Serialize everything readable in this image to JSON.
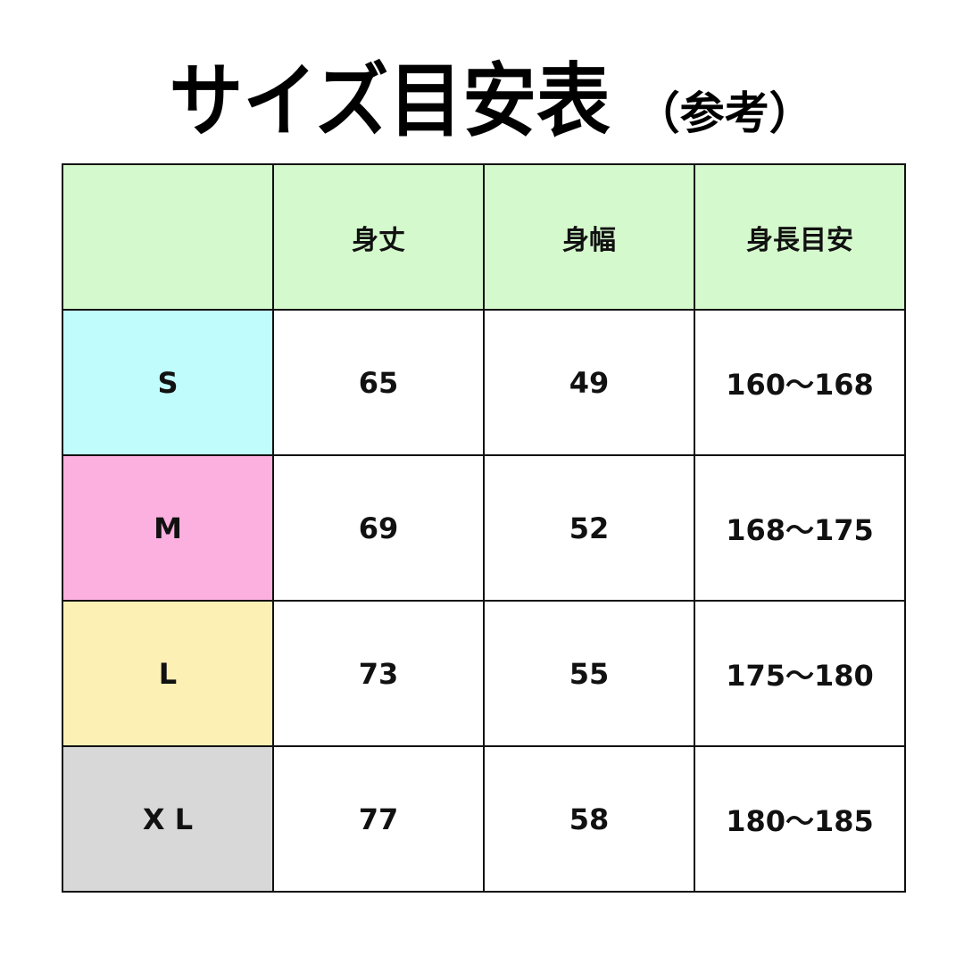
{
  "title": {
    "main": "サイズ目安表",
    "sub": "（参考）"
  },
  "table": {
    "headers": [
      "",
      "身丈",
      "身幅",
      "身長目安"
    ],
    "header_color": "#d4f9cc",
    "rows": [
      {
        "size": "S",
        "color": "#c0fcfc",
        "length": "65",
        "width": "49",
        "height": "160〜168"
      },
      {
        "size": "M",
        "color": "#fcb0e0",
        "length": "69",
        "width": "52",
        "height": "168〜175"
      },
      {
        "size": "L",
        "color": "#fcf0b4",
        "length": "73",
        "width": "55",
        "height": "175〜180"
      },
      {
        "size": "X L",
        "color": "#d8d8d8",
        "length": "77",
        "width": "58",
        "height": "180〜185"
      }
    ]
  }
}
